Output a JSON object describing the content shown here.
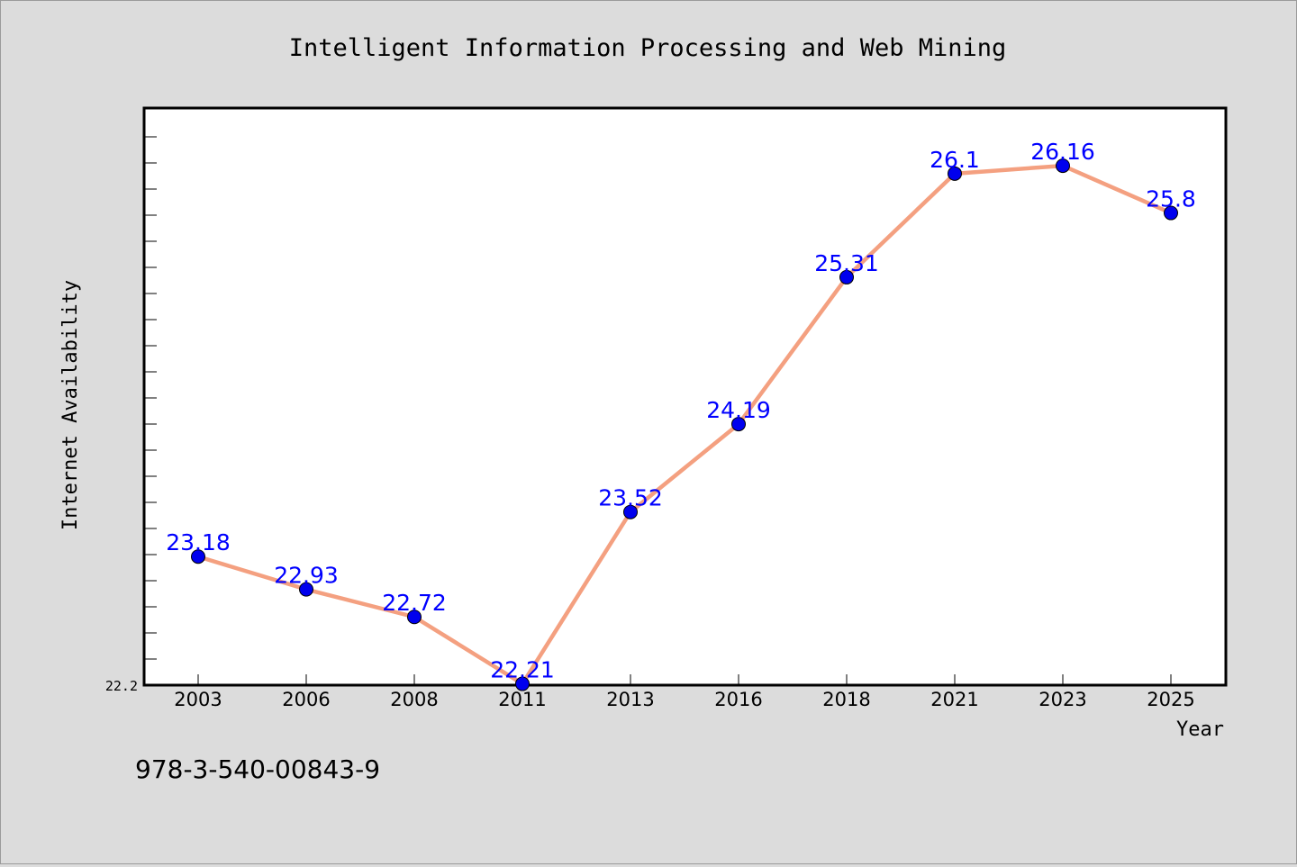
{
  "chart_data": {
    "type": "line",
    "title": "Intelligent Information Processing and Web Mining",
    "xlabel": "Year",
    "ylabel": "Internet Availability",
    "categories": [
      "2003",
      "2006",
      "2008",
      "2011",
      "2013",
      "2016",
      "2018",
      "2021",
      "2023",
      "2025"
    ],
    "series": [
      {
        "values": [
          23.18,
          22.93,
          22.72,
          22.21,
          23.52,
          24.19,
          25.31,
          26.1,
          26.16,
          25.8
        ],
        "data_labels": [
          "23.18",
          "22.93",
          "22.72",
          "22.21",
          "23.52",
          "24.19",
          "25.31",
          "26.1",
          "26.16",
          "25.8"
        ]
      }
    ],
    "ylim": [
      22.2,
      26.6
    ],
    "y_tick_labels": [
      "22.2"
    ],
    "grid": false,
    "legend": "none",
    "colors": {
      "line": "#f4a080",
      "marker": "#0000ee",
      "label": "#0000ff",
      "plot_bg": "#ffffff",
      "page_bg": "#dcdcdc"
    }
  },
  "footer": {
    "isbn": "978-3-540-00843-9"
  }
}
